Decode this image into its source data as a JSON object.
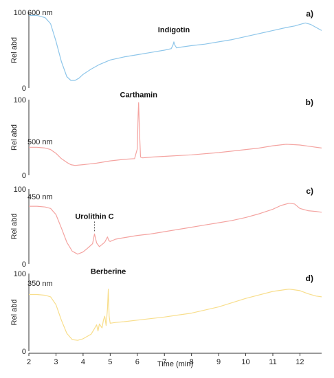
{
  "chart_data": {
    "type": "line",
    "xlabel": "Time (min)",
    "xlim": [
      2,
      12.8
    ],
    "x_ticks": [
      2,
      3,
      4,
      5,
      6,
      7,
      8,
      9,
      10,
      11,
      12
    ],
    "panels": [
      {
        "label": "a)",
        "wavelength": "600 nm",
        "ylabel": "Rel abd",
        "ylim": [
          0,
          100
        ],
        "y_ticks": [
          0,
          100
        ],
        "color": "#8ec6ea",
        "peak_label": "Indigotin",
        "peak_x": 7.35,
        "x": [
          2.0,
          2.3,
          2.6,
          2.8,
          3.0,
          3.2,
          3.4,
          3.55,
          3.7,
          3.85,
          4.0,
          4.3,
          4.6,
          5.0,
          5.5,
          6.0,
          6.5,
          7.0,
          7.25,
          7.32,
          7.35,
          7.38,
          7.45,
          7.6,
          8.0,
          8.5,
          9.0,
          9.5,
          10.0,
          10.5,
          11.0,
          11.5,
          11.8,
          12.0,
          12.2,
          12.4,
          12.6,
          12.8
        ],
        "y": [
          96,
          96,
          93,
          85,
          62,
          35,
          15,
          10,
          10,
          13,
          18,
          25,
          31,
          37,
          41,
          44,
          47,
          50,
          52,
          57,
          61,
          57,
          53,
          54,
          56,
          58,
          61,
          64,
          68,
          72,
          76,
          80,
          82,
          84,
          86,
          84,
          80,
          76
        ]
      },
      {
        "label": "b)",
        "wavelength": "500 nm",
        "ylabel": "Rel abd",
        "ylim": [
          0,
          100
        ],
        "y_ticks": [
          0,
          100
        ],
        "color": "#f4a3a0",
        "peak_label": "Carthamin",
        "peak_x": 6.05,
        "x": [
          2.0,
          2.3,
          2.6,
          2.8,
          3.0,
          3.2,
          3.4,
          3.55,
          3.7,
          4.0,
          4.5,
          5.0,
          5.5,
          5.9,
          6.0,
          6.03,
          6.05,
          6.08,
          6.12,
          6.2,
          6.5,
          7.0,
          8.0,
          9.0,
          10.0,
          10.5,
          11.0,
          11.5,
          12.0,
          12.4,
          12.8
        ],
        "y": [
          37,
          37,
          36,
          34,
          29,
          22,
          17,
          14,
          13,
          14,
          16,
          19,
          21,
          22,
          35,
          80,
          96,
          60,
          24,
          23,
          24,
          25,
          27,
          30,
          34,
          36,
          39,
          41,
          40,
          38,
          36
        ]
      },
      {
        "label": "c)",
        "wavelength": "450 nm",
        "ylabel": "Rel abd",
        "ylim": [
          0,
          100
        ],
        "y_ticks": [
          0,
          100
        ],
        "color": "#f4a3a0",
        "peak_label": "Urolithin C",
        "peak_x": 4.42,
        "x": [
          2.0,
          2.3,
          2.6,
          2.8,
          3.0,
          3.2,
          3.4,
          3.6,
          3.8,
          4.0,
          4.2,
          4.35,
          4.42,
          4.5,
          4.6,
          4.8,
          4.9,
          4.95,
          5.0,
          5.2,
          5.5,
          6.0,
          6.5,
          7.0,
          7.5,
          8.0,
          8.5,
          9.0,
          9.5,
          10.0,
          10.5,
          11.0,
          11.3,
          11.6,
          11.8,
          12.0,
          12.3,
          12.6,
          12.8
        ],
        "y": [
          77,
          77,
          76,
          74,
          66,
          48,
          29,
          17,
          13,
          16,
          22,
          27,
          40,
          28,
          23,
          29,
          36,
          31,
          30,
          33,
          35,
          38,
          40,
          43,
          46,
          49,
          52,
          55,
          58,
          62,
          67,
          73,
          78,
          81,
          80,
          74,
          71,
          70,
          69
        ]
      },
      {
        "label": "d)",
        "wavelength": "350 nm",
        "ylabel": "Rel abd",
        "ylim": [
          0,
          100
        ],
        "y_ticks": [
          0,
          100
        ],
        "color": "#f8de8c",
        "peak_label": "Berberine",
        "peak_x": 4.93,
        "x": [
          2.0,
          2.3,
          2.6,
          2.8,
          3.0,
          3.2,
          3.4,
          3.6,
          3.8,
          4.0,
          4.3,
          4.4,
          4.5,
          4.55,
          4.6,
          4.7,
          4.75,
          4.8,
          4.85,
          4.9,
          4.93,
          4.96,
          5.0,
          5.2,
          5.5,
          6.0,
          7.0,
          8.0,
          9.0,
          10.0,
          11.0,
          11.6,
          12.0,
          12.3,
          12.6,
          12.8
        ],
        "y": [
          73,
          73,
          72,
          70,
          60,
          40,
          23,
          15,
          14,
          16,
          22,
          28,
          34,
          26,
          35,
          30,
          40,
          45,
          33,
          55,
          80,
          45,
          36,
          37,
          38,
          40,
          44,
          49,
          57,
          68,
          77,
          80,
          78,
          74,
          71,
          70
        ]
      }
    ]
  }
}
